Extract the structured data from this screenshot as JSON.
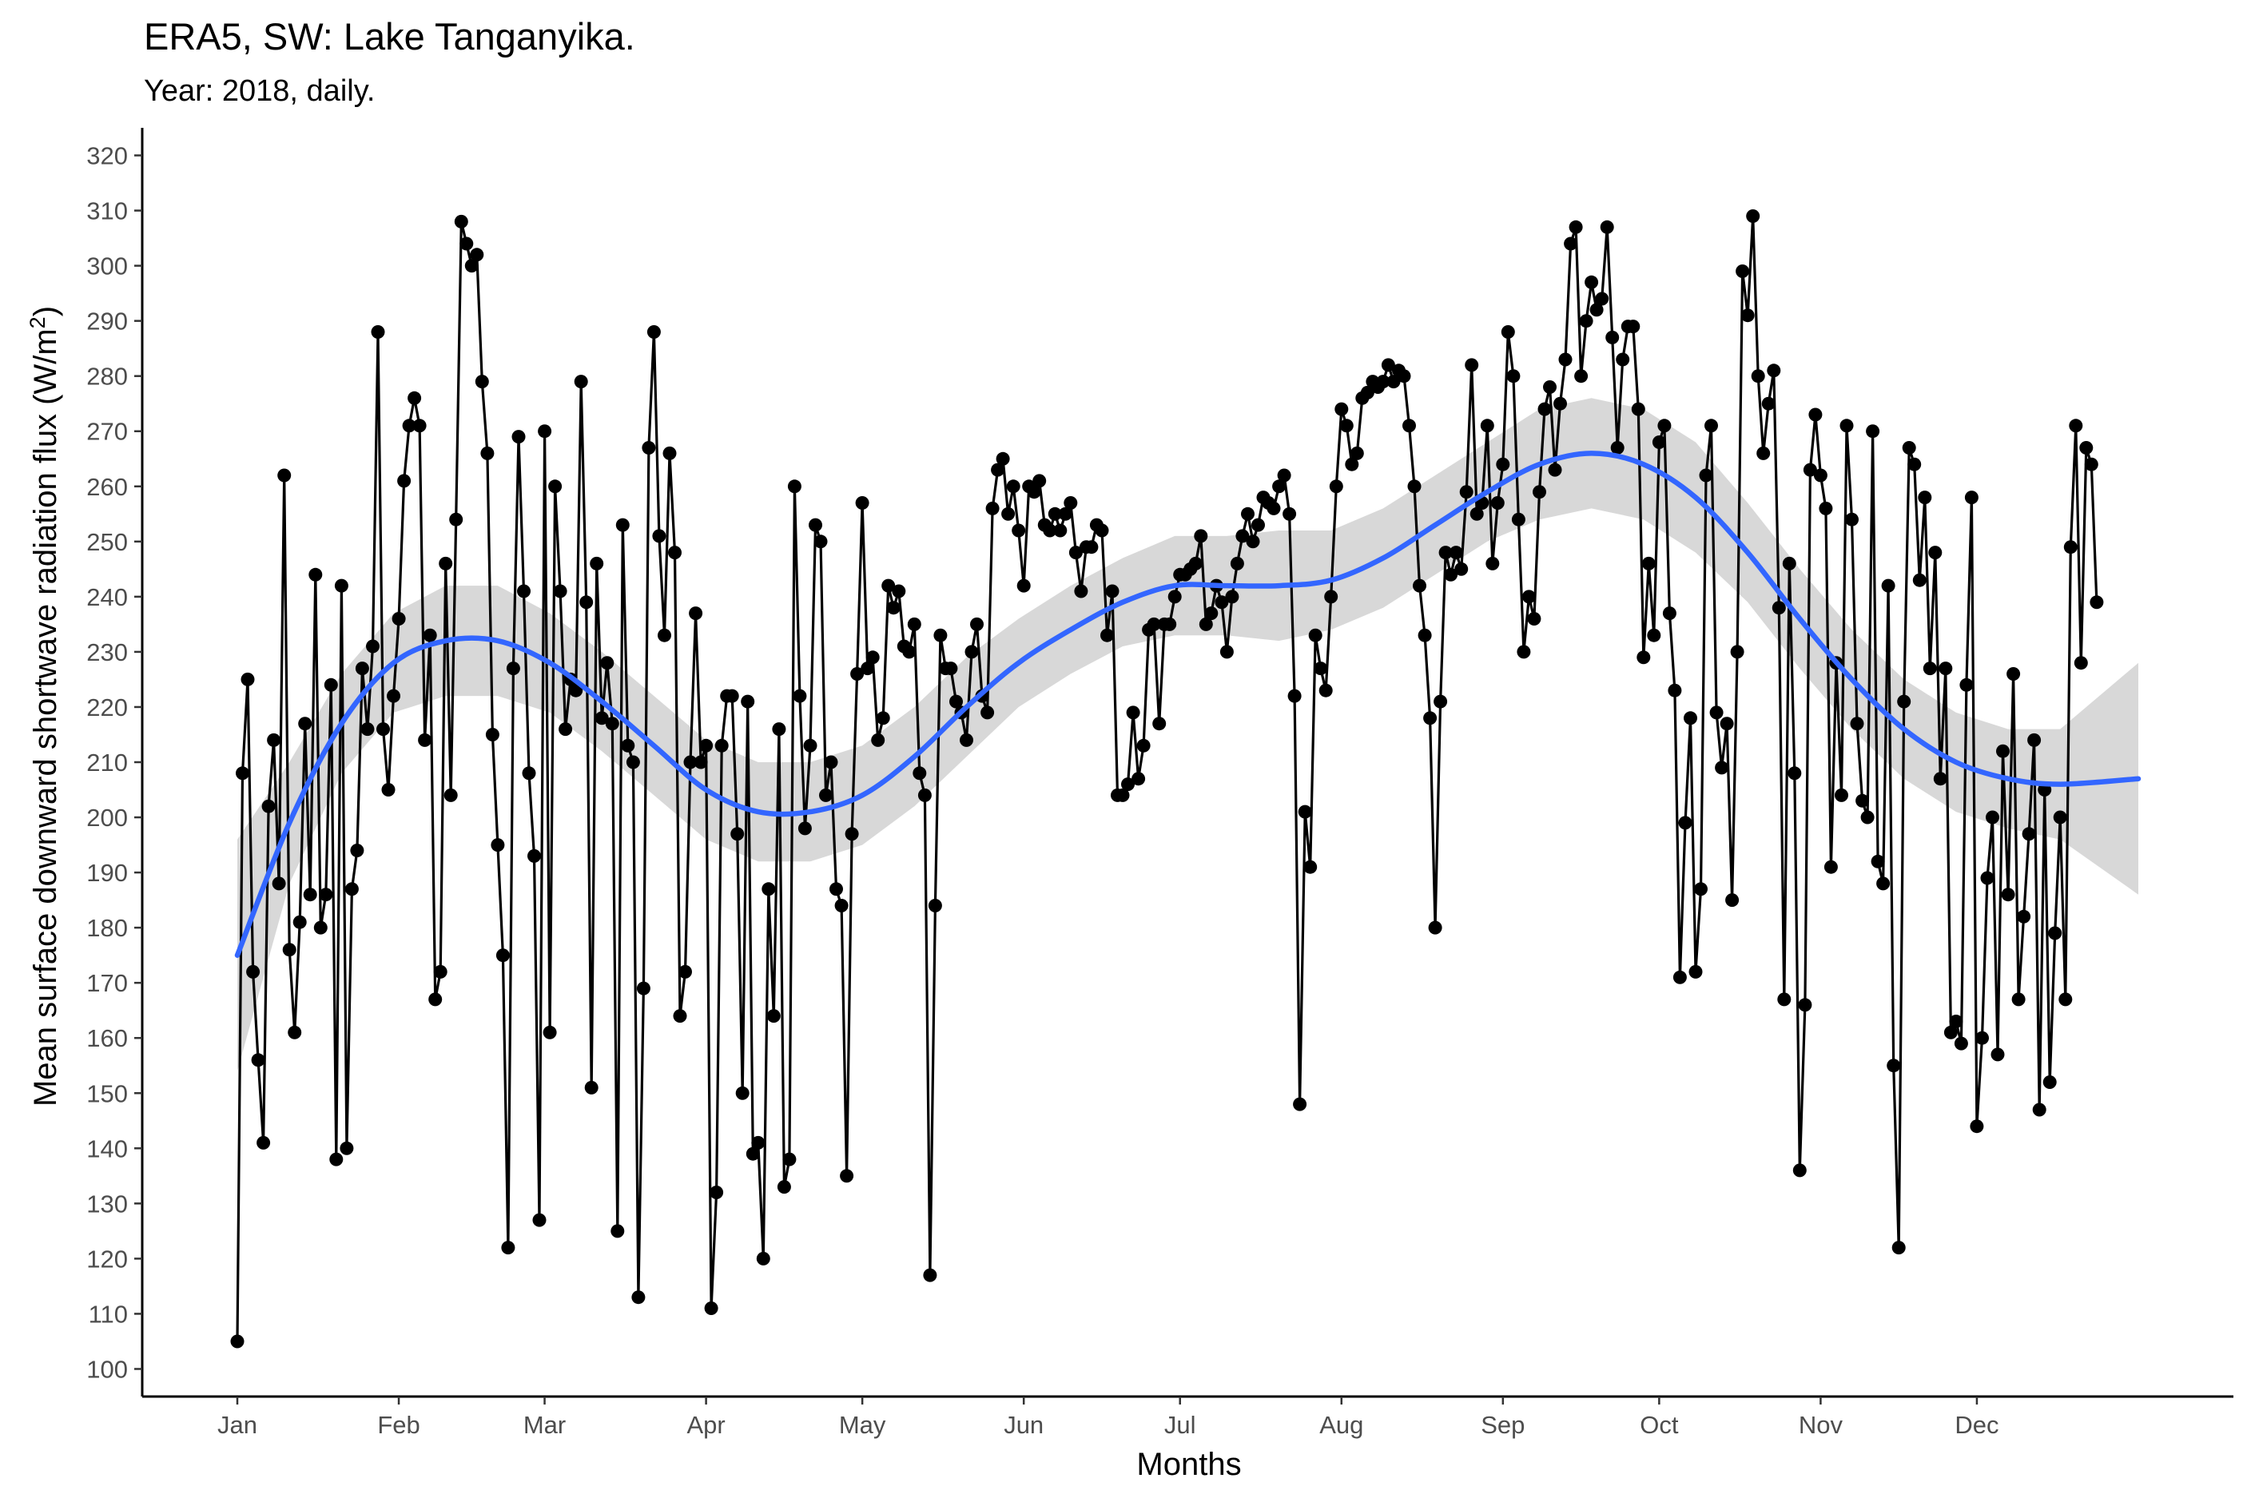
{
  "chart_data": {
    "type": "line",
    "title": "ERA5, SW: Lake Tanganyika.",
    "subtitle": "Year: 2018, daily.",
    "xlabel": "Months",
    "ylabel": "Mean surface downward shortwave radiation flux (W/m",
    "ylabel_superscript": "2",
    "ylabel_suffix": ")",
    "xlim": [
      0,
      365
    ],
    "ylim": [
      95,
      325
    ],
    "y_ticks": [
      100,
      110,
      120,
      130,
      140,
      150,
      160,
      170,
      180,
      190,
      200,
      210,
      220,
      230,
      240,
      250,
      260,
      270,
      280,
      290,
      300,
      310,
      320
    ],
    "x_tick_labels": [
      "Jan",
      "Feb",
      "Mar",
      "Apr",
      "May",
      "Jun",
      "Jul",
      "Aug",
      "Sep",
      "Oct",
      "Nov",
      "Dec"
    ],
    "x_tick_days": [
      0,
      31,
      59,
      90,
      120,
      151,
      181,
      212,
      243,
      273,
      304,
      334
    ],
    "grid": false,
    "legend": "none",
    "colors": {
      "points": "#000000",
      "line": "#000000",
      "smooth": "#3366ff",
      "ribbon": "#bebebe"
    },
    "series": [
      {
        "kind": "daily-observations",
        "values": [
          105,
          208,
          225,
          172,
          156,
          141,
          202,
          214,
          188,
          262,
          176,
          161,
          181,
          217,
          186,
          244,
          180,
          186,
          224,
          138,
          242,
          140,
          187,
          194,
          227,
          216,
          231,
          288,
          216,
          205,
          222,
          236,
          261,
          271,
          276,
          271,
          214,
          233,
          167,
          172,
          246,
          204,
          254,
          308,
          304,
          300,
          302,
          279,
          266,
          215,
          195,
          175,
          122,
          227,
          269,
          241,
          208,
          193,
          127,
          270,
          161,
          260,
          241,
          216,
          225,
          223,
          279,
          239,
          151,
          246,
          218,
          228,
          217,
          125,
          253,
          213,
          210,
          113,
          169,
          267,
          288,
          251,
          233,
          266,
          248,
          164,
          172,
          210,
          237,
          210,
          213,
          111,
          132,
          213,
          222,
          222,
          197,
          150,
          221,
          139,
          141,
          120,
          187,
          164,
          216,
          133,
          138,
          260,
          222,
          198,
          213,
          253,
          250,
          204,
          210,
          187,
          184,
          135,
          197,
          226,
          257,
          227,
          229,
          214,
          218,
          242,
          238,
          241,
          231,
          230,
          235,
          208,
          204,
          117,
          184,
          233,
          227,
          227,
          221,
          219,
          214,
          230,
          235,
          222,
          219,
          256,
          263,
          265,
          255,
          260,
          252,
          242,
          260,
          259,
          261,
          253,
          252,
          255,
          252,
          255,
          257,
          248,
          241,
          249,
          249,
          253,
          252,
          233,
          241,
          204,
          204,
          206,
          219,
          207,
          213,
          234,
          235,
          217,
          235,
          235,
          240,
          244,
          244,
          245,
          246,
          251,
          235,
          237,
          242,
          239,
          230,
          240,
          246,
          251,
          255,
          250,
          253,
          258,
          257,
          256,
          260,
          262,
          255,
          222,
          148,
          201,
          191,
          233,
          227,
          223,
          240,
          260,
          274,
          271,
          264,
          266,
          276,
          277,
          279,
          278,
          279,
          282,
          279,
          281,
          280,
          271,
          260,
          242,
          233,
          218,
          180,
          221,
          248,
          244,
          248,
          245,
          259,
          282,
          255,
          257,
          271,
          246,
          257,
          264,
          288,
          280,
          254,
          230,
          240,
          236,
          259,
          274,
          278,
          263,
          275,
          283,
          304,
          307,
          280,
          290,
          297,
          292,
          294,
          307,
          287,
          267,
          283,
          289,
          289,
          274,
          229,
          246,
          233,
          268,
          271,
          237,
          223,
          171,
          199,
          218,
          172,
          187,
          262,
          271,
          219,
          209,
          217,
          185,
          230,
          299,
          291,
          309,
          280,
          266,
          275,
          281,
          238,
          167,
          246,
          208,
          136,
          166,
          263,
          273,
          262,
          256,
          191,
          228,
          204,
          271,
          254,
          217,
          203,
          200,
          270,
          192,
          188,
          242,
          155,
          122,
          221,
          267,
          264,
          243,
          258,
          227,
          248,
          207,
          227,
          161,
          163,
          159,
          224,
          258,
          144,
          160,
          189,
          200,
          157,
          212,
          186,
          226,
          167,
          182,
          197,
          214,
          147,
          205,
          152,
          179,
          200,
          167,
          249,
          271,
          228,
          267,
          264,
          239
        ]
      },
      {
        "kind": "smoothed-trend",
        "x": [
          0,
          10,
          20,
          30,
          40,
          50,
          60,
          70,
          80,
          90,
          100,
          110,
          120,
          130,
          140,
          150,
          160,
          170,
          180,
          190,
          200,
          210,
          220,
          230,
          240,
          250,
          260,
          270,
          280,
          290,
          300,
          310,
          320,
          330,
          340,
          350,
          365
        ],
        "values": [
          175,
          199,
          217,
          228,
          232,
          232,
          228,
          221,
          213,
          205,
          201,
          201,
          204,
          211,
          220,
          228,
          234,
          239,
          242,
          242,
          242,
          243,
          247,
          253,
          259,
          264,
          266,
          264,
          258,
          248,
          236,
          225,
          216,
          210,
          207,
          206,
          207
        ],
        "ci_upper": [
          196,
          210,
          226,
          237,
          242,
          242,
          237,
          230,
          222,
          214,
          210,
          210,
          213,
          220,
          229,
          236,
          242,
          247,
          251,
          251,
          252,
          252,
          256,
          262,
          268,
          274,
          276,
          274,
          268,
          257,
          245,
          234,
          225,
          219,
          216,
          216,
          228
        ],
        "ci_lower": [
          154,
          188,
          208,
          219,
          222,
          222,
          219,
          212,
          204,
          196,
          192,
          192,
          195,
          202,
          211,
          220,
          226,
          231,
          233,
          233,
          232,
          234,
          238,
          244,
          250,
          254,
          256,
          254,
          248,
          239,
          227,
          216,
          207,
          201,
          198,
          196,
          186
        ]
      }
    ]
  }
}
